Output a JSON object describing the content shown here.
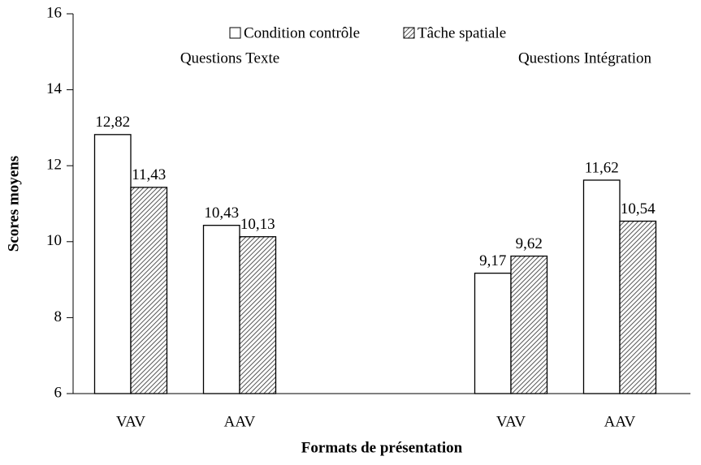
{
  "chart_data": {
    "type": "bar",
    "ylabel": "Scores moyens",
    "xlabel": "Formats de présentation",
    "group_labels": [
      "Questions Texte",
      "Questions Intégration"
    ],
    "categories": [
      "VAV",
      "AAV",
      "VAV",
      "AAV"
    ],
    "series": [
      {
        "name": "Condition contrôle",
        "color": "#ffffff",
        "pattern": "none",
        "values": [
          12.82,
          10.43,
          9.17,
          11.62
        ],
        "value_labels": [
          "12,82",
          "10,43",
          "9,17",
          "11,62"
        ]
      },
      {
        "name": "Tâche spatiale",
        "color": "#ffffff",
        "pattern": "hatch",
        "values": [
          11.43,
          10.13,
          9.62,
          10.54
        ],
        "value_labels": [
          "11,43",
          "10,13",
          "9,62",
          "10,54"
        ]
      }
    ],
    "ylim": [
      6,
      16
    ],
    "yticks": [
      6,
      8,
      10,
      12,
      14,
      16
    ]
  }
}
